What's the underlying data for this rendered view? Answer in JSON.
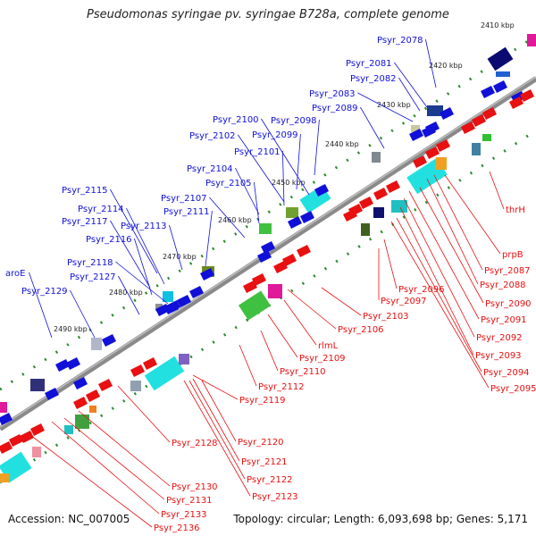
{
  "title": "Pseudomonas syringae pv. syringae B728a, complete genome",
  "accession": "Accession: NC_007005",
  "topology": "Topology: circular; Length: 6,093,698 bp; Genes: 5,171",
  "scale_ticks": [
    "2410 kbp",
    "2420 kbp",
    "2430 kbp",
    "2440 kbp",
    "2450 kbp",
    "2460 kbp",
    "2470 kbp",
    "2480 kbp",
    "2490 kbp"
  ],
  "forward_genes": [
    "Psyr_2078",
    "Psyr_2081",
    "Psyr_2082",
    "Psyr_2083",
    "Psyr_2089",
    "Psyr_2098",
    "Psyr_2100",
    "Psyr_2099",
    "Psyr_2102",
    "Psyr_2101",
    "Psyr_2104",
    "Psyr_2105",
    "Psyr_2107",
    "Psyr_2111",
    "Psyr_2115",
    "Psyr_2114",
    "Psyr_2117",
    "Psyr_2113",
    "Psyr_2116",
    "Psyr_2118",
    "Psyr_2127",
    "aroE",
    "Psyr_2129"
  ],
  "reverse_genes": [
    "thrH",
    "prpB",
    "Psyr_2087",
    "Psyr_2088",
    "Psyr_2090",
    "Psyr_2091",
    "Psyr_2092",
    "Psyr_2093",
    "Psyr_2094",
    "Psyr_2095",
    "Psyr_2096",
    "Psyr_2097",
    "Psyr_2103",
    "Psyr_2106",
    "rlmL",
    "Psyr_2109",
    "Psyr_2110",
    "Psyr_2112",
    "Psyr_2119",
    "Psyr_2128",
    "Psyr_2120",
    "Psyr_2121",
    "Psyr_2122",
    "Psyr_2123",
    "Psyr_2130",
    "Psyr_2131",
    "Psyr_2133",
    "Psyr_2136"
  ],
  "colors": {
    "forward": "#1010d8",
    "reverse": "#e81010",
    "backbone": "#888888",
    "tick": "#2a8a2a"
  }
}
